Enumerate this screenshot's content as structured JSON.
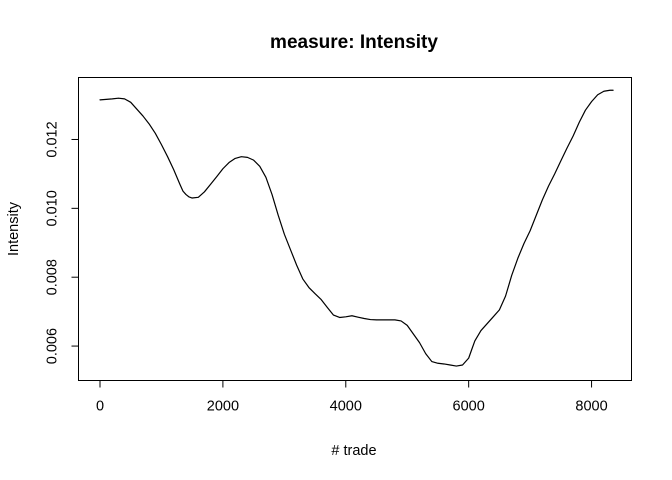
{
  "chart_data": {
    "type": "line",
    "title": "measure: Intensity",
    "xlabel": "# trade",
    "ylabel": "Intensity",
    "xlim": [
      -350,
      8650
    ],
    "ylim": [
      0.005,
      0.0138
    ],
    "xticks": [
      0,
      2000,
      4000,
      6000,
      8000
    ],
    "yticks": [
      0.006,
      0.008,
      0.01,
      0.012
    ],
    "xtick_labels": [
      "0",
      "2000",
      "4000",
      "6000",
      "8000"
    ],
    "ytick_labels": [
      "0.006",
      "0.008",
      "0.010",
      "0.012"
    ],
    "grid": false,
    "series": [
      {
        "x": [
          0,
          200,
          300,
          400,
          500,
          600,
          700,
          800,
          900,
          1000,
          1100,
          1200,
          1300,
          1350,
          1400,
          1450,
          1500,
          1600,
          1700,
          1800,
          1900,
          2000,
          2100,
          2200,
          2300,
          2400,
          2500,
          2600,
          2700,
          2800,
          2900,
          3000,
          3100,
          3200,
          3300,
          3400,
          3500,
          3600,
          3700,
          3800,
          3900,
          4000,
          4100,
          4200,
          4300,
          4400,
          4500,
          4600,
          4700,
          4800,
          4900,
          5000,
          5100,
          5200,
          5300,
          5400,
          5500,
          5600,
          5700,
          5800,
          5900,
          6000,
          6050,
          6100,
          6200,
          6300,
          6400,
          6500,
          6600,
          6700,
          6800,
          6900,
          7000,
          7100,
          7200,
          7300,
          7400,
          7500,
          7600,
          7700,
          7800,
          7900,
          8000,
          8100,
          8200,
          8300,
          8350
        ],
        "y": [
          0.01315,
          0.01318,
          0.0132,
          0.01318,
          0.01308,
          0.01288,
          0.01268,
          0.01245,
          0.01218,
          0.01185,
          0.0115,
          0.01112,
          0.0107,
          0.0105,
          0.0104,
          0.01033,
          0.0103,
          0.01032,
          0.01048,
          0.0107,
          0.01092,
          0.01115,
          0.01133,
          0.01145,
          0.0115,
          0.01148,
          0.0114,
          0.01122,
          0.0109,
          0.0104,
          0.0098,
          0.00925,
          0.0088,
          0.00835,
          0.00795,
          0.0077,
          0.00752,
          0.00735,
          0.00712,
          0.0069,
          0.00683,
          0.00685,
          0.00688,
          0.00684,
          0.0068,
          0.00677,
          0.00676,
          0.00676,
          0.00676,
          0.00676,
          0.00673,
          0.0066,
          0.00635,
          0.0061,
          0.00578,
          0.00555,
          0.0055,
          0.00548,
          0.00545,
          0.00542,
          0.00545,
          0.00565,
          0.0059,
          0.00615,
          0.00645,
          0.00665,
          0.00685,
          0.00705,
          0.00745,
          0.00805,
          0.00855,
          0.00898,
          0.00935,
          0.0098,
          0.01025,
          0.01065,
          0.011,
          0.01138,
          0.01175,
          0.0121,
          0.0125,
          0.01285,
          0.0131,
          0.0133,
          0.0134,
          0.01343,
          0.01343
        ]
      }
    ]
  }
}
